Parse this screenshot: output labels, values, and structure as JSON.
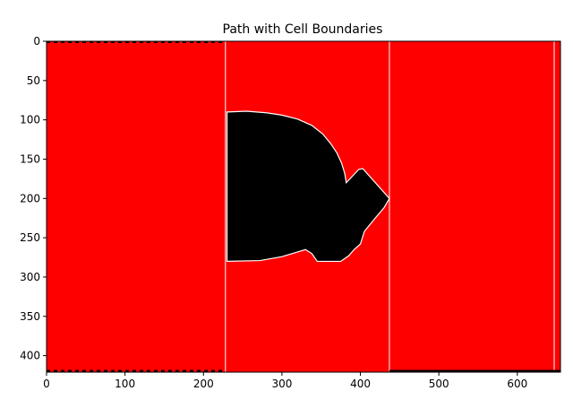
{
  "chart_data": {
    "type": "heatmap",
    "title": "Path with Cell Boundaries",
    "xlabel": "",
    "ylabel": "",
    "xlim": [
      0,
      655
    ],
    "ylim": [
      0,
      421
    ],
    "y_inverted": true,
    "grid": false,
    "x_ticks": [
      0,
      100,
      200,
      300,
      400,
      500,
      600
    ],
    "y_ticks": [
      0,
      50,
      100,
      150,
      200,
      250,
      300,
      350,
      400
    ],
    "background_color": "#ff0000",
    "path_color": "#000000",
    "boundary_color": "#ffffff",
    "cell_boundaries_x": [
      228,
      437,
      647
    ],
    "path_region": [
      [
        230,
        90
      ],
      [
        255,
        89
      ],
      [
        280,
        91
      ],
      [
        300,
        94
      ],
      [
        320,
        99
      ],
      [
        338,
        107
      ],
      [
        352,
        118
      ],
      [
        362,
        130
      ],
      [
        370,
        142
      ],
      [
        376,
        155
      ],
      [
        380,
        168
      ],
      [
        382,
        180
      ],
      [
        398,
        163
      ],
      [
        403,
        162
      ],
      [
        437,
        200
      ],
      [
        430,
        212
      ],
      [
        418,
        226
      ],
      [
        405,
        242
      ],
      [
        400,
        258
      ],
      [
        392,
        265
      ],
      [
        385,
        273
      ],
      [
        375,
        280
      ],
      [
        345,
        280
      ],
      [
        338,
        270
      ],
      [
        330,
        265
      ],
      [
        310,
        271
      ],
      [
        300,
        274
      ],
      [
        272,
        279
      ],
      [
        230,
        280
      ]
    ]
  }
}
